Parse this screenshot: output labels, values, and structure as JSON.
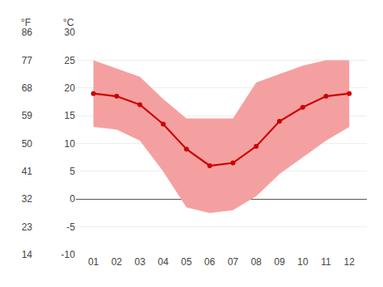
{
  "chart_data": {
    "type": "line",
    "categories": [
      "01",
      "02",
      "03",
      "04",
      "05",
      "06",
      "07",
      "08",
      "09",
      "10",
      "11",
      "12"
    ],
    "series": [
      {
        "values": [
          19.0,
          18.5,
          17.0,
          13.5,
          9.0,
          6.0,
          6.5,
          9.5,
          14.0,
          16.5,
          18.5,
          19.0
        ],
        "color": "#cc0000",
        "marker": "circle"
      }
    ],
    "band": {
      "lower": [
        13.0,
        12.5,
        10.5,
        5.0,
        -1.5,
        -2.5,
        -2.0,
        0.5,
        4.5,
        7.5,
        10.5,
        13.0
      ],
      "upper": [
        25.0,
        23.5,
        22.0,
        18.0,
        14.5,
        14.5,
        14.5,
        21.0,
        22.5,
        24.0,
        25.0,
        25.0
      ],
      "color": "#f5a0a0"
    },
    "ylabel": "°C",
    "y2label": "°F",
    "ylim": [
      -10,
      30
    ],
    "yticks": [
      -10,
      -5,
      0,
      5,
      10,
      15,
      20,
      25,
      30
    ],
    "y2lim": [
      14,
      86
    ],
    "y2ticks": [
      14,
      23,
      32,
      41,
      50,
      59,
      68,
      77,
      86
    ],
    "grid": true
  }
}
